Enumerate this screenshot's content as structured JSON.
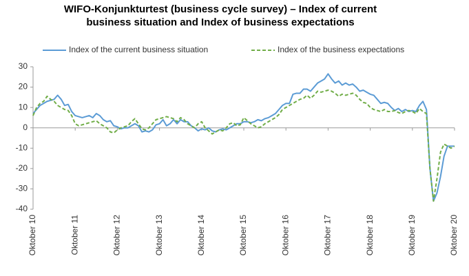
{
  "chart_data": {
    "type": "line",
    "title": "WIFO-Konjunkturtest (business cycle survey) – Index of current business situation and Index of business expectations",
    "categories": [
      "Oktober 10",
      null,
      null,
      null,
      null,
      null,
      null,
      null,
      null,
      null,
      null,
      null,
      "Oktober 11",
      null,
      null,
      null,
      null,
      null,
      null,
      null,
      null,
      null,
      null,
      null,
      "Oktober 12",
      null,
      null,
      null,
      null,
      null,
      null,
      null,
      null,
      null,
      null,
      null,
      "Oktober 13",
      null,
      null,
      null,
      null,
      null,
      null,
      null,
      null,
      null,
      null,
      null,
      "Oktober 14",
      null,
      null,
      null,
      null,
      null,
      null,
      null,
      null,
      null,
      null,
      null,
      "Oktober 15",
      null,
      null,
      null,
      null,
      null,
      null,
      null,
      null,
      null,
      null,
      null,
      "Oktober 16",
      null,
      null,
      null,
      null,
      null,
      null,
      null,
      null,
      null,
      null,
      null,
      "Oktober 17",
      null,
      null,
      null,
      null,
      null,
      null,
      null,
      null,
      null,
      null,
      null,
      "Oktober 18",
      null,
      null,
      null,
      null,
      null,
      null,
      null,
      null,
      null,
      null,
      null,
      "Oktober 19",
      null,
      null,
      null,
      null,
      null,
      null,
      null,
      null,
      null,
      null,
      null,
      "Oktober 20"
    ],
    "series": [
      {
        "name": "Index of the current business situation",
        "color": "#5b9bd5",
        "dashed": false,
        "values": [
          7,
          9,
          11,
          12,
          13,
          13.5,
          14,
          16,
          14,
          11,
          11.5,
          8,
          6,
          5.5,
          5,
          5.5,
          6,
          5,
          7,
          6,
          4,
          3,
          3.5,
          1,
          0.5,
          -0.5,
          0,
          0,
          1,
          2,
          1,
          -2,
          -1.5,
          -2,
          -1,
          1.5,
          2,
          4,
          1,
          2,
          4,
          2,
          4,
          3,
          3,
          1,
          0,
          -1.5,
          -0.5,
          -1,
          0,
          -1.5,
          -2,
          -1,
          -0.5,
          -1,
          0,
          1,
          2,
          2,
          3,
          3,
          2.5,
          3,
          4,
          3.5,
          4.5,
          5,
          6,
          7,
          9,
          11,
          12,
          12,
          16.5,
          17,
          17,
          19,
          19,
          18,
          20,
          22,
          23,
          24,
          26.5,
          24,
          22,
          23,
          21,
          22,
          21,
          21.5,
          20,
          18,
          18.5,
          17.5,
          16.5,
          16,
          14,
          12,
          12.5,
          12,
          10,
          8.5,
          9.5,
          8,
          9,
          8,
          8.5,
          8,
          11,
          13,
          9,
          -20,
          -36,
          -32,
          -24,
          -14,
          -9,
          -9,
          -9
        ]
      },
      {
        "name": "Index of the business expectations",
        "color": "#70ad47",
        "dashed": true,
        "values": [
          6,
          10,
          12,
          13,
          15.5,
          14,
          13,
          11,
          10,
          9,
          8.5,
          6,
          2,
          1,
          1.5,
          2,
          2.5,
          3,
          3.5,
          2,
          1,
          0,
          -2,
          -2.5,
          -1,
          0,
          0.5,
          1,
          3,
          4.5,
          2,
          -0.5,
          -1,
          0,
          2,
          4,
          4.5,
          5,
          5.5,
          5,
          4.5,
          3,
          5,
          4,
          2,
          1,
          0,
          2,
          3,
          0,
          -1.5,
          -3,
          -2,
          -1,
          -1.5,
          0,
          2,
          2.5,
          1,
          1.5,
          5,
          3.5,
          2,
          1,
          0,
          0.5,
          2,
          3,
          4,
          5,
          6.5,
          9,
          10,
          11,
          12,
          13,
          14,
          14.5,
          16,
          14.5,
          16,
          18,
          17.5,
          18,
          18.5,
          18,
          17,
          15.5,
          16.5,
          16,
          16.5,
          17,
          16,
          14,
          12.5,
          12,
          10,
          9,
          8.5,
          8,
          9,
          8,
          8,
          8.5,
          7.5,
          7,
          8,
          8.5,
          8,
          7,
          9.5,
          8,
          7,
          -20,
          -36,
          -25,
          -12,
          -8,
          -9,
          -10,
          -9
        ]
      }
    ],
    "ylim": [
      -40,
      30
    ],
    "yticks": [
      -40,
      -30,
      -20,
      -10,
      0,
      10,
      20,
      30
    ],
    "grid": false,
    "legend": "top"
  }
}
